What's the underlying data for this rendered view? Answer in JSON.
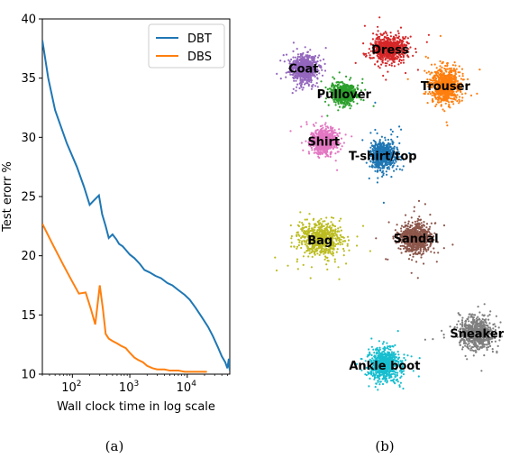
{
  "chart_data": [
    {
      "type": "line",
      "panel_caption": "(a)",
      "xlabel": "Wall clock time in log scale",
      "ylabel": "Test erorr %",
      "xscale": "log",
      "xlim": [
        30,
        55000
      ],
      "ylim": [
        10,
        40
      ],
      "yticks": [
        "10",
        "15",
        "20",
        "25",
        "30",
        "35",
        "40"
      ],
      "xticks": [
        {
          "value": 100,
          "base": "10",
          "exp": "2"
        },
        {
          "value": 1000,
          "base": "10",
          "exp": "3"
        },
        {
          "value": 10000,
          "base": "10",
          "exp": "4"
        }
      ],
      "legend": "top-right",
      "series": [
        {
          "name": "DBT",
          "color": "#1f77b4",
          "points": [
            [
              30,
              38.2
            ],
            [
              38,
              35
            ],
            [
              50,
              32.3
            ],
            [
              80,
              29.5
            ],
            [
              120,
              27.5
            ],
            [
              160,
              25.8
            ],
            [
              200,
              24.3
            ],
            [
              240,
              24.7
            ],
            [
              290,
              25.1
            ],
            [
              330,
              23.5
            ],
            [
              380,
              22.5
            ],
            [
              430,
              21.5
            ],
            [
              500,
              21.8
            ],
            [
              580,
              21.4
            ],
            [
              650,
              21
            ],
            [
              750,
              20.8
            ],
            [
              850,
              20.5
            ],
            [
              1000,
              20.1
            ],
            [
              1200,
              19.8
            ],
            [
              1500,
              19.3
            ],
            [
              1800,
              18.8
            ],
            [
              2200,
              18.6
            ],
            [
              2800,
              18.3
            ],
            [
              3500,
              18.1
            ],
            [
              4500,
              17.7
            ],
            [
              5500,
              17.5
            ],
            [
              7000,
              17.1
            ],
            [
              9000,
              16.7
            ],
            [
              11000,
              16.3
            ],
            [
              14000,
              15.6
            ],
            [
              18000,
              14.8
            ],
            [
              23000,
              14
            ],
            [
              28000,
              13.2
            ],
            [
              34000,
              12.3
            ],
            [
              40000,
              11.5
            ],
            [
              46000,
              11
            ],
            [
              50000,
              10.5
            ],
            [
              53000,
              11.3
            ],
            [
              55000,
              10.3
            ]
          ]
        },
        {
          "name": "DBS",
          "color": "#ff7f0e",
          "points": [
            [
              30,
              22.7
            ],
            [
              45,
              21
            ],
            [
              70,
              19.2
            ],
            [
              100,
              17.8
            ],
            [
              130,
              16.8
            ],
            [
              170,
              16.9
            ],
            [
              210,
              15.5
            ],
            [
              250,
              14.2
            ],
            [
              300,
              17.5
            ],
            [
              340,
              15.5
            ],
            [
              380,
              13.4
            ],
            [
              430,
              13
            ],
            [
              500,
              12.8
            ],
            [
              600,
              12.6
            ],
            [
              700,
              12.4
            ],
            [
              850,
              12.2
            ],
            [
              1000,
              11.8
            ],
            [
              1200,
              11.4
            ],
            [
              1400,
              11.2
            ],
            [
              1700,
              11
            ],
            [
              2000,
              10.7
            ],
            [
              2500,
              10.5
            ],
            [
              3000,
              10.4
            ],
            [
              4000,
              10.4
            ],
            [
              5000,
              10.3
            ],
            [
              7000,
              10.3
            ],
            [
              9000,
              10.2
            ],
            [
              12000,
              10.2
            ],
            [
              15000,
              10.2
            ],
            [
              19000,
              10.2
            ],
            [
              22000,
              10.2
            ]
          ]
        }
      ]
    },
    {
      "type": "scatter",
      "panel_caption": "(b)",
      "clusters": [
        {
          "label": "Coat",
          "color": "#9467bd",
          "cx": -3.2,
          "cy": 7.7,
          "sx": 0.36,
          "sy": 0.42
        },
        {
          "label": "Dress",
          "color": "#d62728",
          "cx": 1.5,
          "cy": 8.9,
          "sx": 0.44,
          "sy": 0.4
        },
        {
          "label": "Pullover",
          "color": "#2ca02c",
          "cx": -1.0,
          "cy": 6.1,
          "sx": 0.3,
          "sy": 0.3
        },
        {
          "label": "Trouser",
          "color": "#ff7f0e",
          "cx": 4.5,
          "cy": 6.6,
          "sx": 0.4,
          "sy": 0.55
        },
        {
          "label": "Shirt",
          "color": "#e377c2",
          "cx": -2.1,
          "cy": 3.1,
          "sx": 0.34,
          "sy": 0.38
        },
        {
          "label": "T-shirt/top",
          "color": "#1f77b4",
          "cx": 1.1,
          "cy": 2.2,
          "sx": 0.33,
          "sy": 0.4
        },
        {
          "label": "Bag",
          "color": "#bcbd22",
          "cx": -2.3,
          "cy": -3.1,
          "sx": 0.55,
          "sy": 0.5
        },
        {
          "label": "Sandal",
          "color": "#8c564b",
          "cx": 2.9,
          "cy": -3.0,
          "sx": 0.42,
          "sy": 0.46
        },
        {
          "label": "Sneaker",
          "color": "#7f7f7f",
          "cx": 6.2,
          "cy": -9.0,
          "sx": 0.48,
          "sy": 0.48
        },
        {
          "label": "Ankle boot",
          "color": "#17becf",
          "cx": 1.2,
          "cy": -11.0,
          "sx": 0.38,
          "sy": 0.5
        }
      ]
    }
  ]
}
